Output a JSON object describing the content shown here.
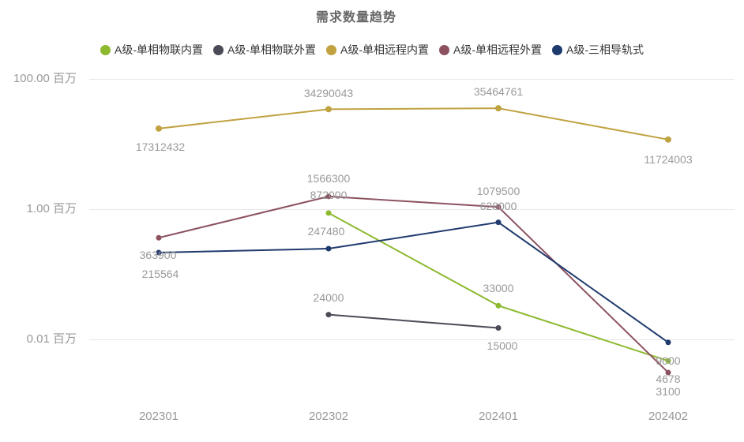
{
  "title": "需求数量趋势",
  "chart_data": {
    "type": "line",
    "title": "需求数量趋势",
    "y_scale": "log",
    "unit": "百万",
    "legend_position": "top",
    "grid": true,
    "categories": [
      "202301",
      "202302",
      "202401",
      "202402"
    ],
    "series": [
      {
        "name": "A级-单相物联内置",
        "color": "#8cb92e",
        "values": [
          null,
          872000,
          33000,
          4678
        ]
      },
      {
        "name": "A级-单相物联外置",
        "color": "#4b4b57",
        "values": [
          null,
          24000,
          15000,
          null
        ]
      },
      {
        "name": "A级-单相远程内置",
        "color": "#c0a240",
        "values": [
          17312432,
          34290043,
          35464761,
          11724003
        ]
      },
      {
        "name": "A级-单相远程外置",
        "color": "#8c5260",
        "values": [
          363900,
          1566300,
          1079500,
          3100
        ]
      },
      {
        "name": "A级-三相导轨式",
        "color": "#1f3a6d",
        "values": [
          215564,
          247480,
          628000,
          9000
        ]
      }
    ],
    "y_ticks": [
      {
        "label": "100.00 百万",
        "value": 100000000
      },
      {
        "label": "1.00 百万",
        "value": 1000000
      },
      {
        "label": "0.01 百万",
        "value": 10000
      }
    ]
  }
}
